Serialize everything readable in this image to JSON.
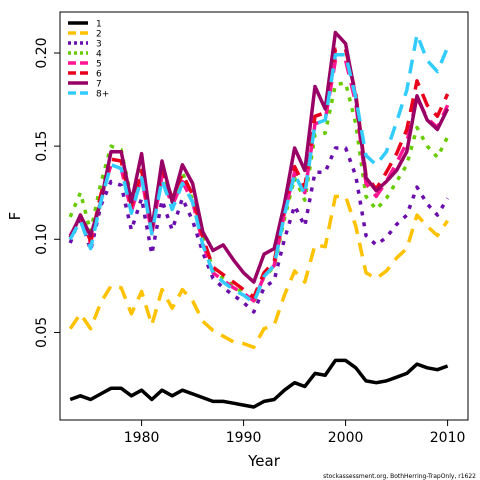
{
  "chart_data": {
    "type": "line",
    "xlabel": "Year",
    "ylabel": "F",
    "footnote": "stockassessment.org, BothHerring-TrapOnly, r1622",
    "xlim": [
      1972,
      2012
    ],
    "ylim": [
      0.003,
      0.222
    ],
    "xticks": [
      1980,
      1990,
      2000,
      2010
    ],
    "yticks": [
      0.05,
      0.1,
      0.15,
      0.2
    ],
    "ytick_labels": [
      "0.05",
      "0.10",
      "0.15",
      "0.20"
    ],
    "legend_position": "top-left",
    "x": [
      1973,
      1974,
      1975,
      1976,
      1977,
      1978,
      1979,
      1980,
      1981,
      1982,
      1983,
      1984,
      1985,
      1986,
      1987,
      1988,
      1989,
      1990,
      1991,
      1992,
      1993,
      1994,
      1995,
      1996,
      1997,
      1998,
      1999,
      2000,
      2001,
      2002,
      2003,
      2004,
      2005,
      2006,
      2007,
      2008,
      2009,
      2010
    ],
    "series": [
      {
        "name": "1",
        "color": "#000000",
        "dash": "",
        "values": [
          0.014,
          0.016,
          0.014,
          0.017,
          0.02,
          0.02,
          0.016,
          0.019,
          0.014,
          0.019,
          0.016,
          0.019,
          0.017,
          0.015,
          0.013,
          0.013,
          0.012,
          0.011,
          0.01,
          0.013,
          0.014,
          0.019,
          0.023,
          0.021,
          0.028,
          0.027,
          0.035,
          0.035,
          0.031,
          0.024,
          0.023,
          0.024,
          0.026,
          0.028,
          0.033,
          0.031,
          0.03,
          0.032
        ]
      },
      {
        "name": "2",
        "color": "#ffc200",
        "dash": "14 9",
        "values": [
          0.052,
          0.06,
          0.052,
          0.066,
          0.075,
          0.074,
          0.06,
          0.072,
          0.054,
          0.073,
          0.063,
          0.073,
          0.067,
          0.056,
          0.051,
          0.048,
          0.045,
          0.044,
          0.042,
          0.052,
          0.054,
          0.07,
          0.083,
          0.077,
          0.097,
          0.096,
          0.123,
          0.123,
          0.107,
          0.082,
          0.079,
          0.083,
          0.09,
          0.095,
          0.113,
          0.107,
          0.102,
          0.11
        ]
      },
      {
        "name": "3",
        "color": "#6a0dad",
        "dash": "4 7",
        "values": [
          0.098,
          0.112,
          0.094,
          0.118,
          0.131,
          0.129,
          0.105,
          0.122,
          0.092,
          0.121,
          0.105,
          0.122,
          0.11,
          0.093,
          0.079,
          0.074,
          0.07,
          0.066,
          0.061,
          0.074,
          0.078,
          0.1,
          0.118,
          0.107,
          0.136,
          0.136,
          0.149,
          0.149,
          0.134,
          0.102,
          0.097,
          0.101,
          0.108,
          0.113,
          0.128,
          0.119,
          0.113,
          0.122
        ]
      },
      {
        "name": "4",
        "color": "#66cc00",
        "dash": "4 7",
        "values": [
          0.112,
          0.125,
          0.104,
          0.13,
          0.15,
          0.148,
          0.122,
          0.137,
          0.105,
          0.136,
          0.12,
          0.136,
          0.121,
          0.101,
          0.084,
          0.079,
          0.075,
          0.071,
          0.066,
          0.08,
          0.085,
          0.111,
          0.133,
          0.121,
          0.156,
          0.157,
          0.183,
          0.184,
          0.162,
          0.123,
          0.116,
          0.122,
          0.131,
          0.14,
          0.16,
          0.15,
          0.144,
          0.155
        ]
      },
      {
        "name": "5",
        "color": "#ff1493",
        "dash": "14 9",
        "values": [
          0.102,
          0.112,
          0.098,
          0.122,
          0.14,
          0.138,
          0.115,
          0.133,
          0.103,
          0.134,
          0.118,
          0.131,
          0.12,
          0.098,
          0.082,
          0.078,
          0.074,
          0.071,
          0.067,
          0.08,
          0.086,
          0.114,
          0.136,
          0.125,
          0.162,
          0.164,
          0.196,
          0.196,
          0.173,
          0.13,
          0.123,
          0.131,
          0.141,
          0.152,
          0.176,
          0.165,
          0.16,
          0.172
        ]
      },
      {
        "name": "6",
        "color": "#e8001c",
        "dash": "14 9",
        "values": [
          0.101,
          0.113,
          0.099,
          0.124,
          0.143,
          0.142,
          0.118,
          0.137,
          0.106,
          0.138,
          0.122,
          0.135,
          0.124,
          0.101,
          0.085,
          0.081,
          0.077,
          0.073,
          0.069,
          0.082,
          0.088,
          0.117,
          0.139,
          0.128,
          0.166,
          0.168,
          0.202,
          0.202,
          0.178,
          0.134,
          0.127,
          0.136,
          0.146,
          0.159,
          0.185,
          0.172,
          0.166,
          0.178
        ]
      },
      {
        "name": "7",
        "color": "#990066",
        "dash": "",
        "values": [
          0.101,
          0.113,
          0.102,
          0.12,
          0.147,
          0.147,
          0.12,
          0.146,
          0.105,
          0.142,
          0.12,
          0.14,
          0.13,
          0.104,
          0.094,
          0.097,
          0.089,
          0.082,
          0.077,
          0.092,
          0.095,
          0.119,
          0.149,
          0.137,
          0.182,
          0.17,
          0.211,
          0.205,
          0.176,
          0.133,
          0.126,
          0.131,
          0.137,
          0.147,
          0.177,
          0.164,
          0.159,
          0.17
        ]
      },
      {
        "name": "8+",
        "color": "#33ccff",
        "dash": "14 9",
        "values": [
          0.1,
          0.11,
          0.095,
          0.12,
          0.14,
          0.138,
          0.114,
          0.133,
          0.103,
          0.132,
          0.116,
          0.13,
          0.12,
          0.097,
          0.082,
          0.077,
          0.073,
          0.07,
          0.066,
          0.08,
          0.086,
          0.113,
          0.135,
          0.124,
          0.162,
          0.164,
          0.199,
          0.199,
          0.176,
          0.145,
          0.14,
          0.147,
          0.163,
          0.18,
          0.21,
          0.196,
          0.19,
          0.203
        ]
      }
    ]
  }
}
